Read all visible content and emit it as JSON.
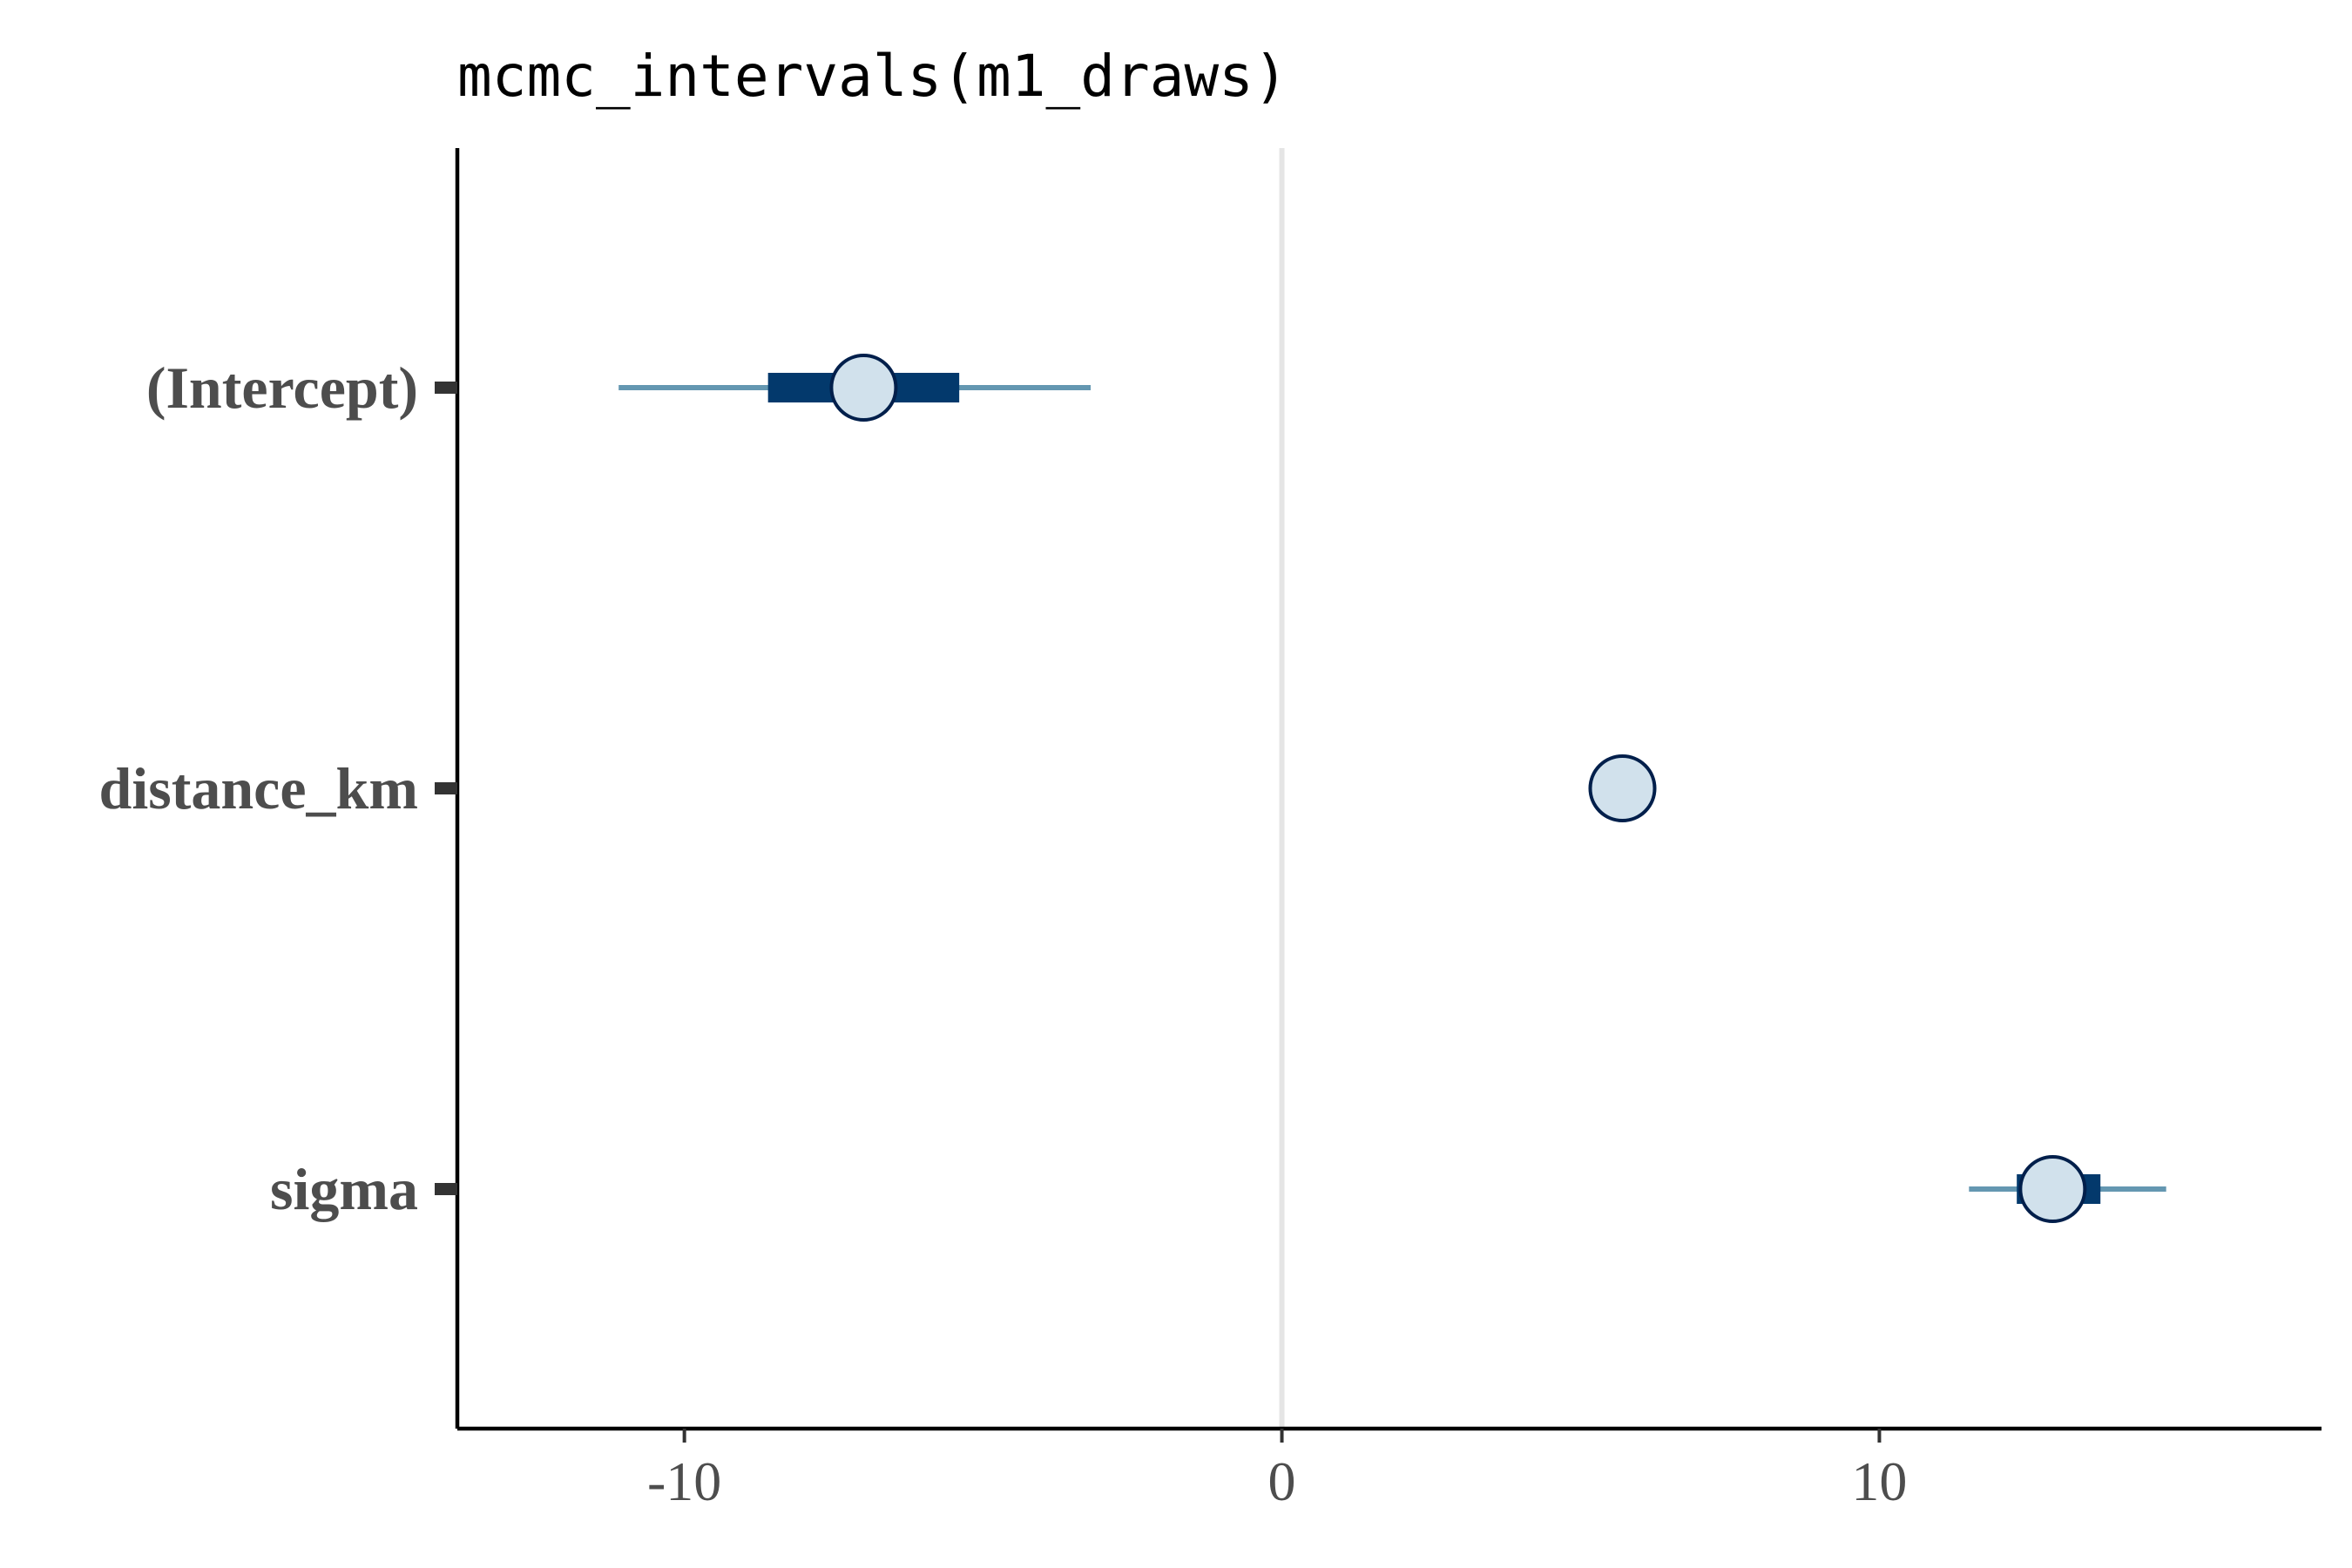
{
  "chart_data": {
    "type": "interval",
    "title": "mcmc_intervals(m1_draws)",
    "xlabel": "",
    "ylabel": "",
    "xlim": [
      -13.8,
      17.4
    ],
    "x_ticks": [
      -10,
      0,
      10
    ],
    "x_tick_labels": [
      "-10",
      "0",
      "10"
    ],
    "reference_line": 0,
    "grid": false,
    "parameters": [
      {
        "label": "(Intercept)",
        "outer": [
          -11.1,
          -3.2
        ],
        "inner": [
          -8.6,
          -5.4
        ],
        "point": -7.0
      },
      {
        "label": "distance_km",
        "outer": [
          5.6,
          5.8
        ],
        "inner": [
          5.65,
          5.75
        ],
        "point": 5.7
      },
      {
        "label": "sigma",
        "outer": [
          11.5,
          14.8
        ],
        "inner": [
          12.3,
          13.7
        ],
        "point": 12.9
      }
    ],
    "colors": {
      "outer": "#6497b1",
      "inner": "#03396c",
      "point_fill": "#d1e1ec",
      "point_stroke": "#011f4b",
      "reference": "#e5e5e5",
      "axis": "#000000",
      "tick_label": "#4d4d4d"
    }
  }
}
